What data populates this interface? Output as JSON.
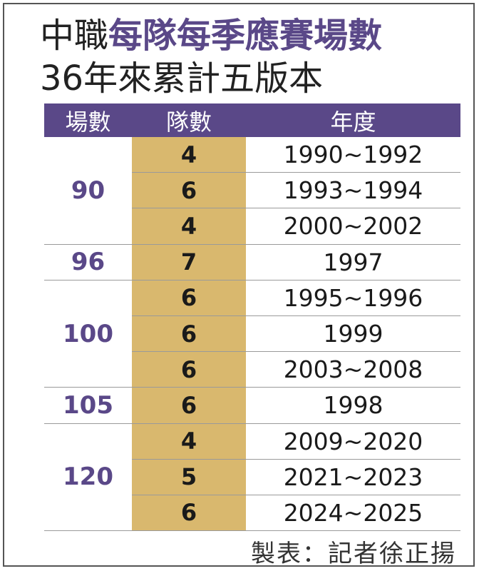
{
  "title": {
    "line1_plain": "中職",
    "line1_accent": "每隊每季應賽場數",
    "line2": "36年來累計五版本"
  },
  "table": {
    "headers": [
      "場數",
      "隊數",
      "年度"
    ],
    "groups": [
      {
        "games": "90",
        "rows": [
          {
            "teams": "4",
            "years": "1990~1992"
          },
          {
            "teams": "6",
            "years": "1993~1994"
          },
          {
            "teams": "4",
            "years": "2000~2002"
          }
        ]
      },
      {
        "games": "96",
        "rows": [
          {
            "teams": "7",
            "years": "1997"
          }
        ]
      },
      {
        "games": "100",
        "rows": [
          {
            "teams": "6",
            "years": "1995~1996"
          },
          {
            "teams": "6",
            "years": "1999"
          },
          {
            "teams": "6",
            "years": "2003~2008"
          }
        ]
      },
      {
        "games": "105",
        "rows": [
          {
            "teams": "6",
            "years": "1998"
          }
        ]
      },
      {
        "games": "120",
        "rows": [
          {
            "teams": "4",
            "years": "2009~2020"
          },
          {
            "teams": "5",
            "years": "2021~2023"
          },
          {
            "teams": "6",
            "years": "2024~2025"
          }
        ]
      }
    ]
  },
  "credit": "製表：記者徐正揚",
  "colors": {
    "accent_purple": "#5a4888",
    "teams_column_gold": "#d9b86e"
  }
}
